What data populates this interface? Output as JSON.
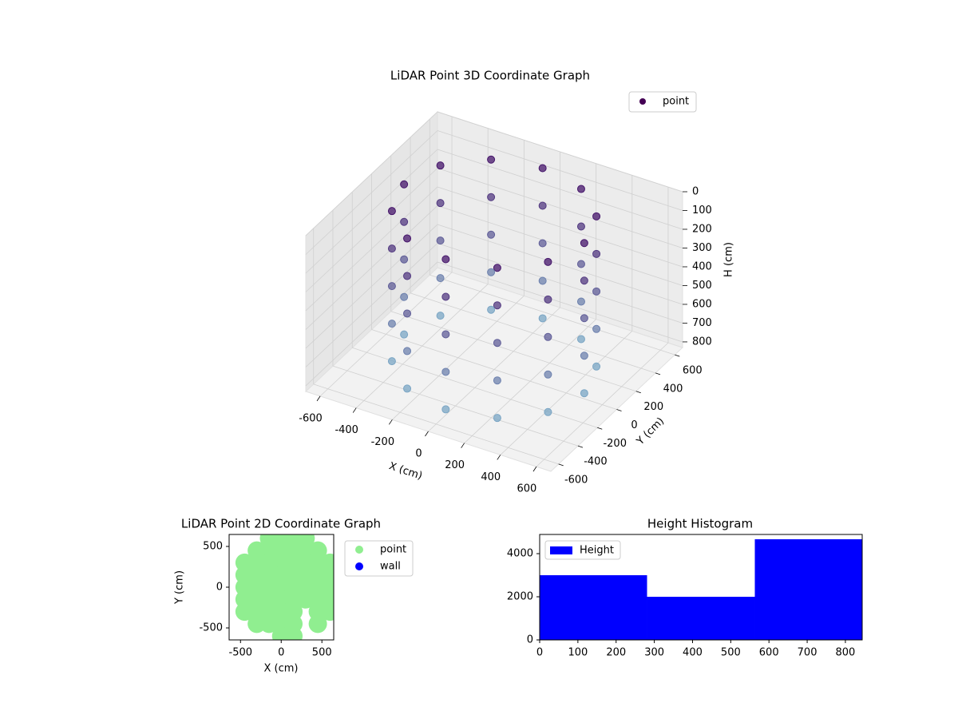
{
  "chart_data": [
    {
      "type": "scatter3d",
      "title": "LiDAR Point 3D Coordinate Graph",
      "x_label": "X (cm)",
      "y_label": "Y (cm)",
      "z_label": "H (cm)",
      "xlim": [
        -680,
        680
      ],
      "ylim": [
        -680,
        680
      ],
      "zlim": [
        830,
        0
      ],
      "xticks": [
        -600,
        -400,
        -200,
        0,
        200,
        400,
        600
      ],
      "yticks": [
        -600,
        -400,
        -200,
        0,
        200,
        400,
        600
      ],
      "zticks": [
        0,
        100,
        200,
        300,
        400,
        500,
        600,
        700,
        800
      ],
      "colormap": [
        "#46166b",
        "#7aa5c4"
      ],
      "legend_color": "#440154",
      "grid": true,
      "legend": "upper right",
      "series": [
        {
          "name": "point",
          "x": [
            500,
            433,
            250,
            0,
            -250,
            -433,
            -500,
            -433,
            -250,
            0,
            250,
            433,
            500,
            433,
            250,
            0,
            -250,
            -433,
            -500,
            -433,
            -250,
            0,
            250,
            433,
            500,
            433,
            250,
            0,
            -250,
            -433,
            -500,
            -433,
            -250,
            0,
            250,
            433,
            500,
            433,
            250,
            0,
            -250,
            -433,
            -500,
            -433,
            -250,
            0,
            250,
            433,
            500,
            433,
            250,
            0,
            -250,
            -433,
            -500,
            -433,
            -250,
            0,
            250,
            433
          ],
          "y": [
            0,
            250,
            433,
            500,
            433,
            250,
            0,
            -250,
            -433,
            -500,
            -433,
            -250,
            0,
            250,
            433,
            500,
            433,
            250,
            0,
            -250,
            -433,
            -500,
            -433,
            -250,
            0,
            250,
            433,
            500,
            433,
            250,
            0,
            -250,
            -433,
            -500,
            -433,
            -250,
            0,
            250,
            433,
            500,
            433,
            250,
            0,
            -250,
            -433,
            -500,
            -433,
            -250,
            0,
            250,
            433,
            500,
            433,
            250,
            0,
            -250,
            -433,
            -500,
            -433,
            -250
          ],
          "z": [
            0,
            0,
            0,
            0,
            0,
            0,
            0,
            0,
            0,
            0,
            0,
            0,
            200,
            200,
            200,
            200,
            200,
            200,
            200,
            200,
            200,
            200,
            200,
            200,
            400,
            400,
            400,
            400,
            400,
            400,
            400,
            400,
            400,
            400,
            400,
            400,
            600,
            600,
            600,
            600,
            600,
            600,
            600,
            600,
            600,
            600,
            600,
            600,
            800,
            800,
            800,
            800,
            800,
            800,
            800,
            800,
            800,
            800,
            800,
            800
          ]
        }
      ]
    },
    {
      "type": "scatter",
      "title": "LiDAR Point 2D Coordinate Graph",
      "x_label": "X (cm)",
      "y_label": "Y (cm)",
      "xlim": [
        -640,
        645
      ],
      "ylim": [
        -647,
        647
      ],
      "xticks": [
        -500,
        0,
        500
      ],
      "yticks": [
        -500,
        0,
        500
      ],
      "legend": "outside right",
      "series": [
        {
          "name": "point",
          "color": "#90ee90",
          "x": [
            -150,
            0,
            150,
            300,
            -300,
            -150,
            0,
            150,
            300,
            450,
            -450,
            -300,
            -150,
            0,
            150,
            300,
            450,
            600,
            -450,
            -300,
            -150,
            0,
            150,
            300,
            450,
            600,
            -450,
            -300,
            -150,
            0,
            150,
            300,
            450,
            600,
            -450,
            -300,
            -150,
            0,
            150,
            300,
            450,
            600,
            -450,
            -300,
            -150,
            0,
            150,
            450,
            600,
            -300,
            -150,
            0,
            150,
            450,
            0,
            150
          ],
          "y": [
            600,
            600,
            600,
            600,
            450,
            450,
            450,
            450,
            450,
            450,
            300,
            300,
            300,
            300,
            300,
            300,
            300,
            300,
            150,
            150,
            150,
            150,
            150,
            150,
            150,
            150,
            0,
            0,
            0,
            0,
            0,
            0,
            0,
            0,
            -150,
            -150,
            -150,
            -150,
            -150,
            -150,
            -150,
            -150,
            -300,
            -300,
            -300,
            -300,
            -300,
            -300,
            -300,
            -450,
            -450,
            -450,
            -450,
            -450,
            -600,
            -600
          ]
        },
        {
          "name": "wall",
          "color": "#0000ff",
          "x": [],
          "y": []
        }
      ]
    },
    {
      "type": "histogram",
      "title": "Height Histogram",
      "bins": [
        0,
        281,
        563,
        844
      ],
      "counts": [
        3000,
        2000,
        4667
      ],
      "series_name": "Height",
      "color": "#0000ff",
      "xlim": [
        0,
        844
      ],
      "ylim": [
        0,
        4890
      ],
      "xticks": [
        0,
        100,
        200,
        300,
        400,
        500,
        600,
        700,
        800
      ],
      "yticks": [
        0,
        2000,
        4000
      ],
      "legend": "upper left"
    }
  ]
}
